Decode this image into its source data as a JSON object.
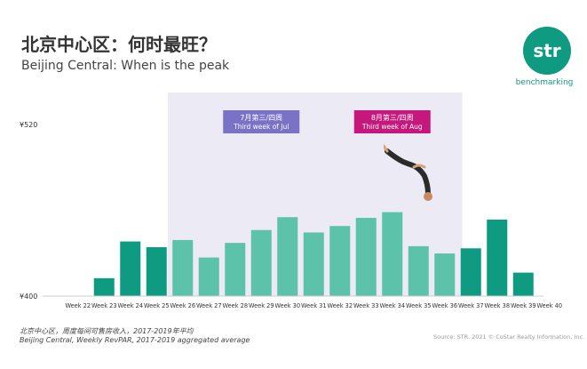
{
  "header": {
    "title": "北京中心区：何时最旺？",
    "subtitle": "Beijing Central: When is the peak"
  },
  "logo": {
    "word": "str",
    "tagline": "benchmarking"
  },
  "chart_data": {
    "type": "bar",
    "categories": [
      "Week 22",
      "Week 23",
      "Week 24",
      "Week 25",
      "Week 26",
      "Week 27",
      "Week 28",
      "Week 29",
      "Week 30",
      "Week 31",
      "Week 32",
      "Week 33",
      "Week 34",
      "Week 35",
      "Week 36",
      "Week 37",
      "Week 38",
      "Week 39",
      "Week 40"
    ],
    "values": [
      null,
      412.5,
      438.2,
      434.2,
      439.2,
      427.0,
      437.2,
      446.2,
      455.2,
      444.5,
      449.0,
      454.7,
      458.7,
      434.9,
      429.8,
      433.4,
      453.5,
      416.4,
      null
    ],
    "ylim": [
      400,
      520
    ],
    "y_tick_labels": [
      "¥520",
      "¥400"
    ],
    "highlight_range": [
      "Week 26",
      "Week 36"
    ],
    "colors": {
      "dark": "#0f9b82",
      "light": "#5cc2a9",
      "highlight_bg": "#ecebf5"
    },
    "annotations": [
      {
        "line1": "7月第三/四周",
        "line2": "Third week of Jul",
        "color": "#7a72c6",
        "category": "Week 29"
      },
      {
        "line1": "8月第三/四周",
        "line2": "Third week of Aug",
        "color": "#c5177c",
        "category": "Week 34"
      }
    ]
  },
  "footer": {
    "note_cn": "北京中心区，周度每间可售房收入，2017-2019年平均",
    "note_en": "Beijing Central, Weekly RevPAR, 2017-2019  aggregated average",
    "source": "Source: STR. 2021 © CoStar Realty Information, Inc."
  }
}
